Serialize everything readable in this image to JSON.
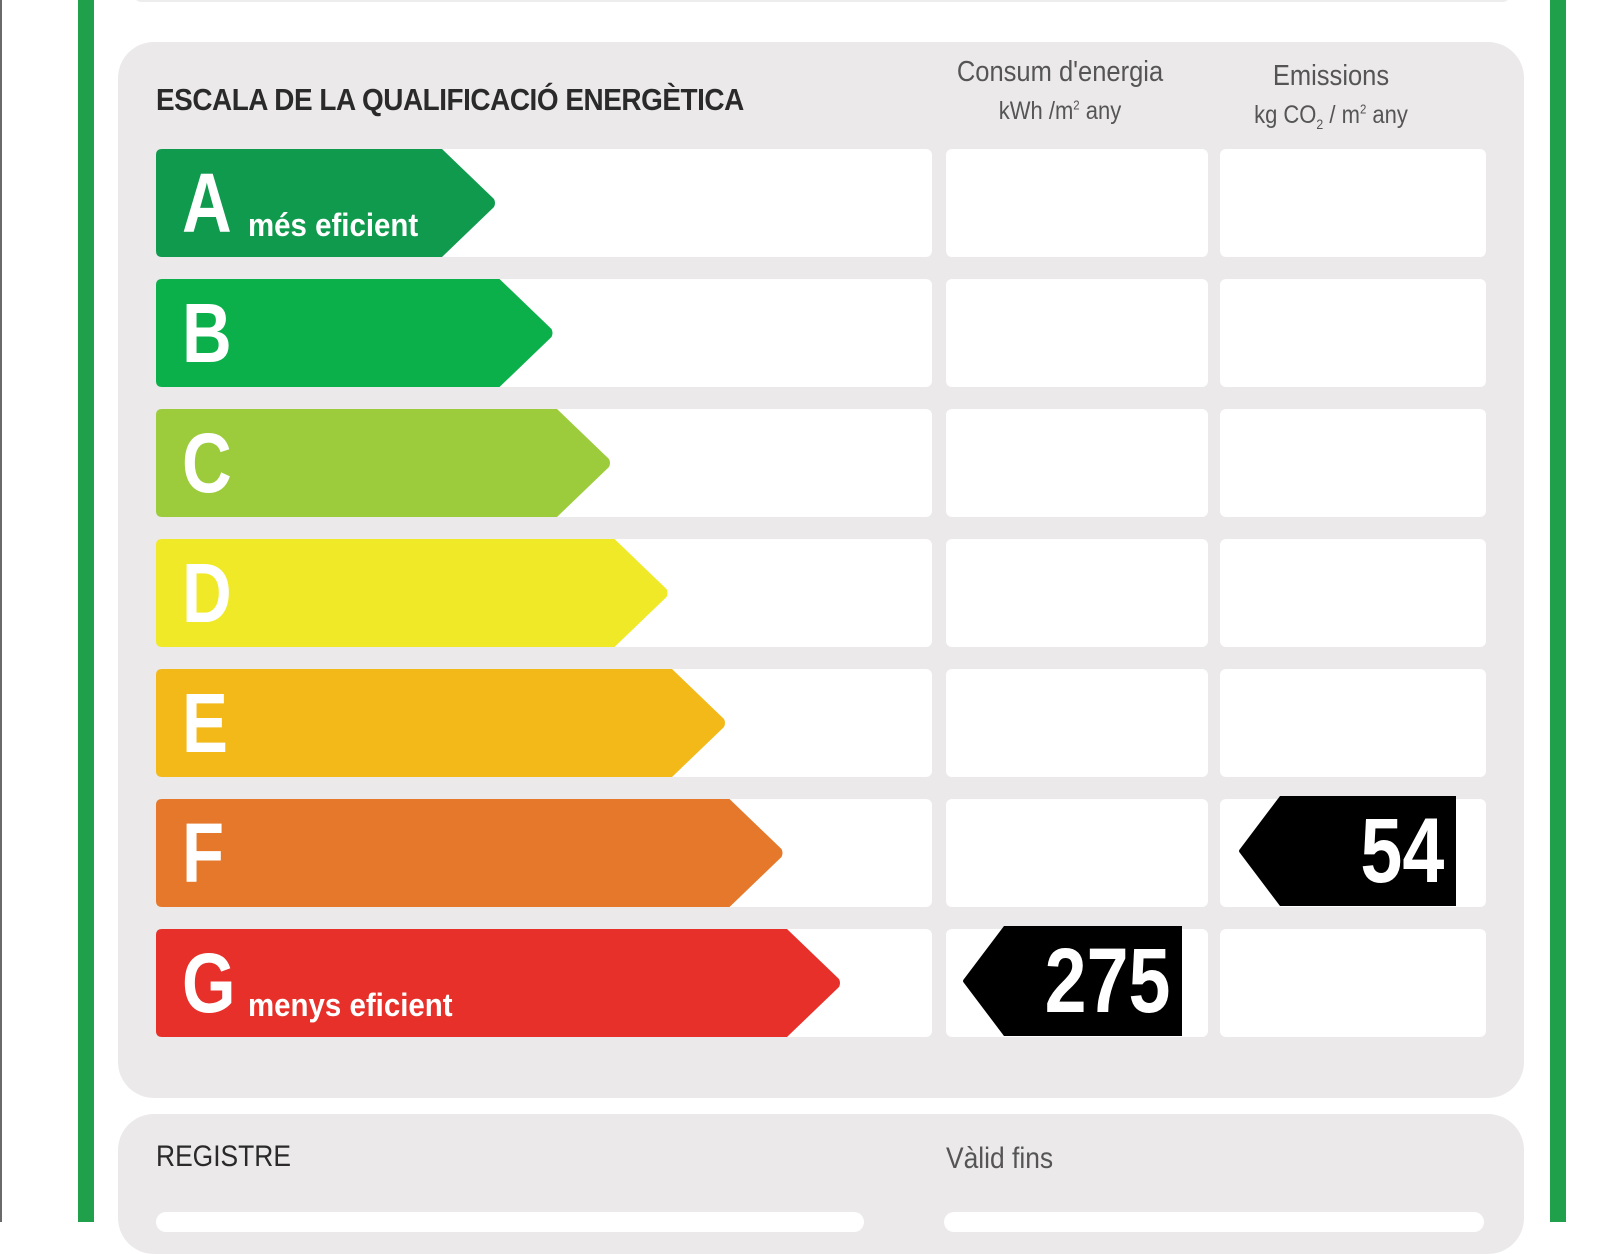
{
  "scale": {
    "title": "ESCALA DE LA QUALIFICACIÓ ENERGÈTICA",
    "energy_header": {
      "label": "Consum d'energia",
      "unit_prefix": "kWh /m",
      "unit_sup": "2",
      "unit_suffix": " any"
    },
    "emissions_header": {
      "label": "Emissions",
      "unit_prefix": "kg CO",
      "unit_sub": "2",
      "unit_mid": " / m",
      "unit_sup": "2",
      "unit_suffix": " any"
    },
    "classes": [
      {
        "letter": "A",
        "description": "més eficient",
        "color": "#0f9a4e"
      },
      {
        "letter": "B",
        "description": "",
        "color": "#0cb04b"
      },
      {
        "letter": "C",
        "description": "",
        "color": "#9ccc3c"
      },
      {
        "letter": "D",
        "description": "",
        "color": "#efe928"
      },
      {
        "letter": "E",
        "description": "",
        "color": "#f2b918"
      },
      {
        "letter": "F",
        "description": "",
        "color": "#e5782a"
      },
      {
        "letter": "G",
        "description": "menys eficient",
        "color": "#e7302a"
      }
    ],
    "energy_rating": {
      "class": "G",
      "value": "275"
    },
    "emissions_rating": {
      "class": "F",
      "value": "54"
    }
  },
  "register": {
    "label": "REGISTRE",
    "valid_until_label": "Vàlid fins"
  },
  "colors": {
    "frame": "#20a04a",
    "panel": "#ebe9ea",
    "badge": "#000000"
  }
}
